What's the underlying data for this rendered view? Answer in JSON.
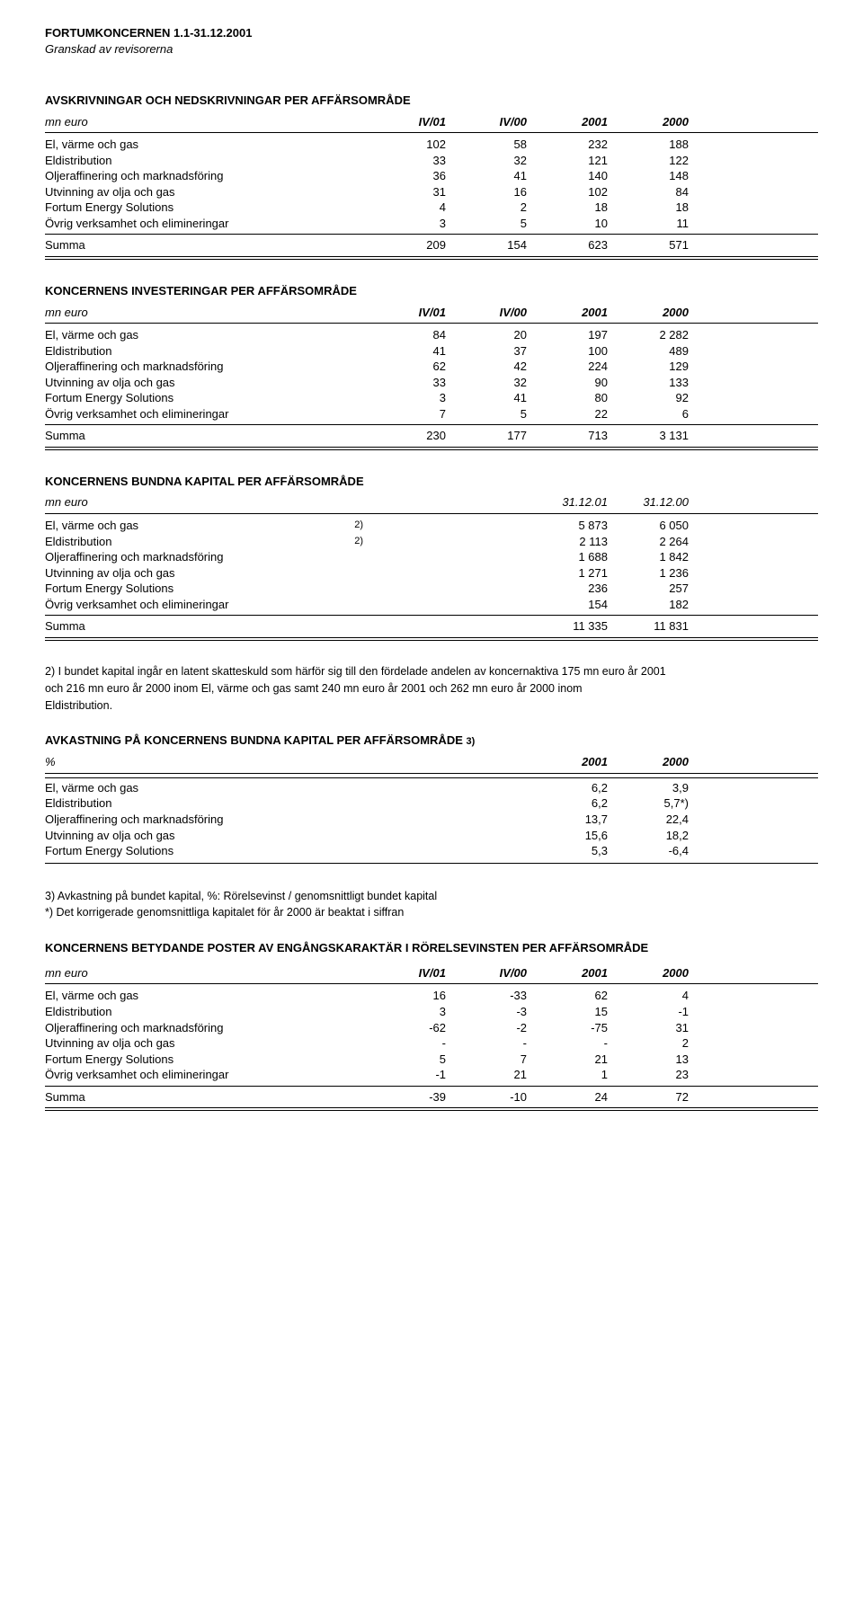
{
  "header": {
    "title": "FORTUMKONCERNEN 1.1-31.12.2001",
    "subtitle": "Granskad av revisorerna"
  },
  "sections": {
    "avskrivningar": {
      "title": "AVSKRIVNINGAR OCH NEDSKRIVNINGAR PER AFFÄRSOMRÅDE",
      "lead": {
        "label": "mn euro",
        "c1": "IV/01",
        "c2": "IV/00",
        "c3": "2001",
        "c4": "2000"
      },
      "rows": [
        {
          "label": "El, värme och gas",
          "c1": "102",
          "c2": "58",
          "c3": "232",
          "c4": "188"
        },
        {
          "label": "Eldistribution",
          "c1": "33",
          "c2": "32",
          "c3": "121",
          "c4": "122"
        },
        {
          "label": "Oljeraffinering och marknadsföring",
          "c1": "36",
          "c2": "41",
          "c3": "140",
          "c4": "148"
        },
        {
          "label": "Utvinning av olja och gas",
          "c1": "31",
          "c2": "16",
          "c3": "102",
          "c4": "84"
        },
        {
          "label": "Fortum Energy Solutions",
          "c1": "4",
          "c2": "2",
          "c3": "18",
          "c4": "18"
        },
        {
          "label": "Övrig verksamhet och elimineringar",
          "c1": "3",
          "c2": "5",
          "c3": "10",
          "c4": "11"
        }
      ],
      "sum": {
        "label": "Summa",
        "c1": "209",
        "c2": "154",
        "c3": "623",
        "c4": "571"
      }
    },
    "investeringar": {
      "title": "KONCERNENS INVESTERINGAR PER AFFÄRSOMRÅDE",
      "lead": {
        "label": "mn euro",
        "c1": "IV/01",
        "c2": "IV/00",
        "c3": "2001",
        "c4": "2000"
      },
      "rows": [
        {
          "label": "El, värme och gas",
          "c1": "84",
          "c2": "20",
          "c3": "197",
          "c4": "2 282"
        },
        {
          "label": "Eldistribution",
          "c1": "41",
          "c2": "37",
          "c3": "100",
          "c4": "489"
        },
        {
          "label": "Oljeraffinering och marknadsföring",
          "c1": "62",
          "c2": "42",
          "c3": "224",
          "c4": "129"
        },
        {
          "label": "Utvinning av olja och gas",
          "c1": "33",
          "c2": "32",
          "c3": "90",
          "c4": "133"
        },
        {
          "label": "Fortum Energy Solutions",
          "c1": "3",
          "c2": "41",
          "c3": "80",
          "c4": "92"
        },
        {
          "label": "Övrig verksamhet och elimineringar",
          "c1": "7",
          "c2": "5",
          "c3": "22",
          "c4": "6"
        }
      ],
      "sum": {
        "label": "Summa",
        "c1": "230",
        "c2": "177",
        "c3": "713",
        "c4": "3 131"
      }
    },
    "bundna": {
      "title": "KONCERNENS BUNDNA KAPITAL PER AFFÄRSOMRÅDE",
      "lead": {
        "label": "mn euro",
        "c3": "31.12.01",
        "c4": "31.12.00"
      },
      "rows": [
        {
          "label": "El, värme och gas",
          "annot": "2)",
          "c3": "5 873",
          "c4": "6 050"
        },
        {
          "label": "Eldistribution",
          "annot": "2)",
          "c3": "2 113",
          "c4": "2 264"
        },
        {
          "label": "Oljeraffinering och marknadsföring",
          "c3": "1 688",
          "c4": "1 842"
        },
        {
          "label": "Utvinning av olja och gas",
          "c3": "1 271",
          "c4": "1 236"
        },
        {
          "label": "Fortum Energy Solutions",
          "c3": "236",
          "c4": "257"
        },
        {
          "label": "Övrig verksamhet och elimineringar",
          "c3": "154",
          "c4": "182"
        }
      ],
      "sum": {
        "label": "Summa",
        "c3": "11 335",
        "c4": "11 831"
      }
    },
    "note2": {
      "l1": "2) I bundet kapital ingår en latent skatteskuld som härför sig till den fördelade andelen av koncernaktiva 175 mn euro år 2001",
      "l2": " och 216 mn euro år 2000 inom El, värme och gas samt 240 mn euro år 2001 och 262 mn euro år 2000 inom",
      "l3": "Eldistribution."
    },
    "avkastning": {
      "title": "AVKASTNING PÅ KONCERNENS BUNDNA KAPITAL PER AFFÄRSOMRÅDE",
      "title_annot": "3)",
      "lead": {
        "label": "%",
        "c3": "2001",
        "c4": "2000"
      },
      "rows": [
        {
          "label": "El, värme och gas",
          "c3": "6,2",
          "c4": "3,9"
        },
        {
          "label": "Eldistribution",
          "c3": "6,2",
          "c4": "5,7*)"
        },
        {
          "label": "Oljeraffinering och marknadsföring",
          "c3": "13,7",
          "c4": "22,4"
        },
        {
          "label": "Utvinning av olja och gas",
          "c3": "15,6",
          "c4": "18,2"
        },
        {
          "label": "Fortum Energy Solutions",
          "c3": "5,3",
          "c4": "-6,4"
        }
      ]
    },
    "note3": {
      "l1": "3) Avkastning på bundet kapital, %: Rörelsevinst / genomsnittligt bundet kapital",
      "l2": "*) Det korrigerade genomsnittliga kapitalet för år 2000 är beaktat i siffran"
    },
    "betydande": {
      "title": "KONCERNENS BETYDANDE POSTER AV ENGÅNGSKARAKTÄR I RÖRELSEVINSTEN PER AFFÄRSOMRÅDE",
      "lead": {
        "label": "mn euro",
        "c1": "IV/01",
        "c2": "IV/00",
        "c3": "2001",
        "c4": "2000"
      },
      "rows": [
        {
          "label": "El, värme och gas",
          "c1": "16",
          "c2": "-33",
          "c3": "62",
          "c4": "4"
        },
        {
          "label": "Eldistribution",
          "c1": "3",
          "c2": "-3",
          "c3": "15",
          "c4": "-1"
        },
        {
          "label": "Oljeraffinering och marknadsföring",
          "c1": "-62",
          "c2": "-2",
          "c3": "-75",
          "c4": "31"
        },
        {
          "label": "Utvinning av olja och gas",
          "c1": "-",
          "c2": "-",
          "c3": "-",
          "c4": "2"
        },
        {
          "label": "Fortum Energy Solutions",
          "c1": "5",
          "c2": "7",
          "c3": "21",
          "c4": "13"
        },
        {
          "label": "Övrig verksamhet och elimineringar",
          "c1": "-1",
          "c2": "21",
          "c3": "1",
          "c4": "23"
        }
      ],
      "sum": {
        "label": "Summa",
        "c1": "-39",
        "c2": "-10",
        "c3": "24",
        "c4": "72"
      }
    }
  }
}
